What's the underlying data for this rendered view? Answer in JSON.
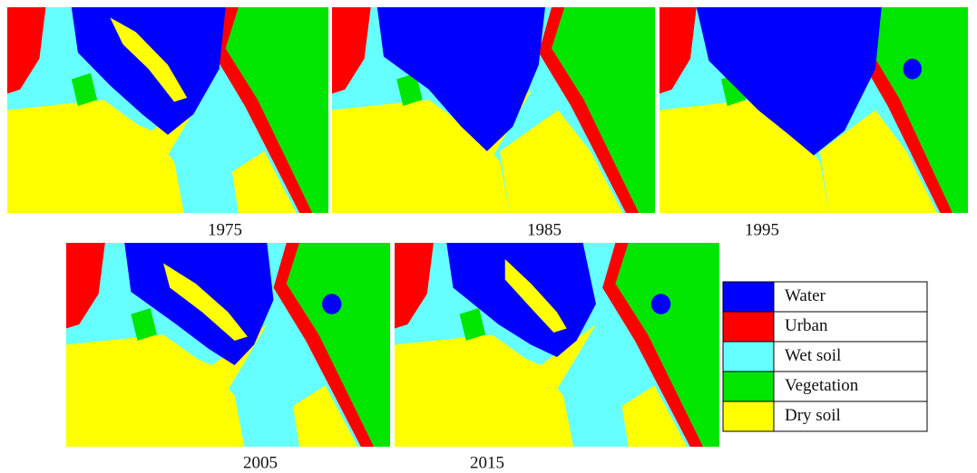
{
  "panels": [
    {
      "label": "1975"
    },
    {
      "label": "1985"
    },
    {
      "label": "1995"
    },
    {
      "label": "2005"
    },
    {
      "label": "2015"
    }
  ],
  "legend": [
    {
      "label": "Water",
      "color": "#0000ff"
    },
    {
      "label": "Urban",
      "color": "#ff0000"
    },
    {
      "label": "Wet soil",
      "color": "#66ffff"
    },
    {
      "label": "Vegetation",
      "color": "#00e600"
    },
    {
      "label": "Dry soil",
      "color": "#ffff00"
    }
  ]
}
